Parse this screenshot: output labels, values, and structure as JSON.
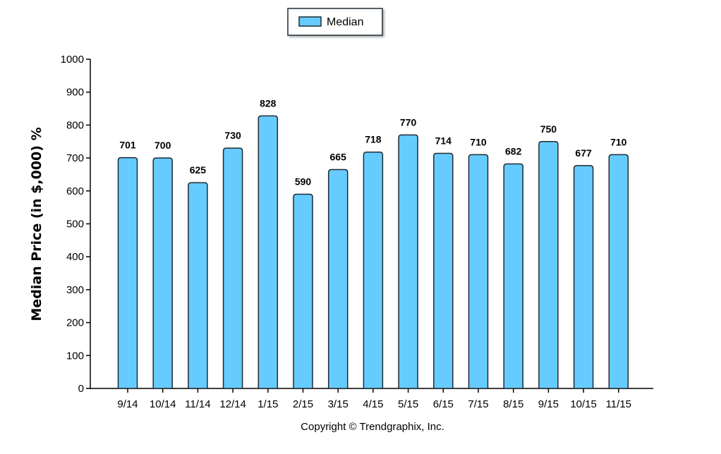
{
  "chart_data": {
    "type": "bar",
    "categories": [
      "9/14",
      "10/14",
      "11/14",
      "12/14",
      "1/15",
      "2/15",
      "3/15",
      "4/15",
      "5/15",
      "6/15",
      "7/15",
      "8/15",
      "9/15",
      "10/15",
      "11/15"
    ],
    "series": [
      {
        "name": "Median",
        "values": [
          701,
          700,
          625,
          730,
          828,
          590,
          665,
          718,
          770,
          714,
          710,
          682,
          750,
          677,
          710
        ]
      }
    ],
    "ylabel": "Median Price (in $,000) %",
    "xlabel": "",
    "ylim": [
      0,
      1000
    ],
    "yticks": [
      0,
      100,
      200,
      300,
      400,
      500,
      600,
      700,
      800,
      900,
      1000
    ],
    "legend_position": "top-center",
    "grid": false,
    "copyright": "Copyright © Trendgraphix, Inc.",
    "colors": {
      "bar_fill": "#66ccff",
      "bar_stroke": "#1f2a33",
      "axis": "#000000"
    }
  }
}
